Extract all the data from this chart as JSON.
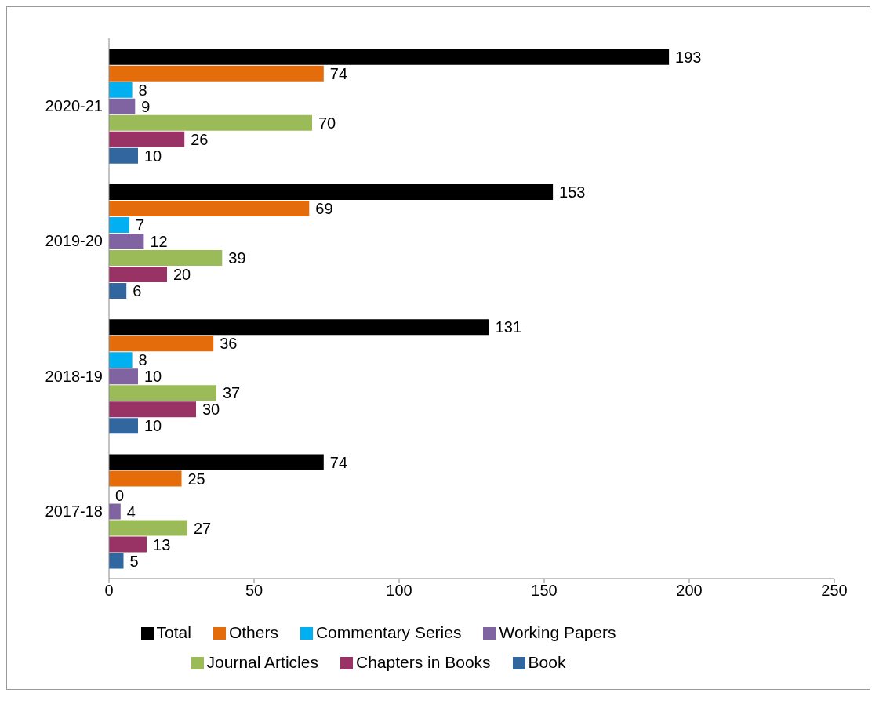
{
  "chart_data": {
    "type": "bar",
    "orientation": "horizontal",
    "categories": [
      "2020-21",
      "2019-20",
      "2018-19",
      "2017-18"
    ],
    "series": [
      {
        "name": "Total",
        "color": "#000000",
        "values": [
          193,
          153,
          131,
          74
        ]
      },
      {
        "name": "Others",
        "color": "#e46c0a",
        "values": [
          74,
          69,
          36,
          25
        ]
      },
      {
        "name": "Commentary Series",
        "color": "#00b0f0",
        "values": [
          8,
          7,
          8,
          0
        ]
      },
      {
        "name": "Working Papers",
        "color": "#8064a2",
        "values": [
          9,
          12,
          10,
          4
        ]
      },
      {
        "name": "Journal Articles",
        "color": "#9bbb59",
        "values": [
          70,
          39,
          37,
          27
        ]
      },
      {
        "name": "Chapters in Books",
        "color": "#993366",
        "values": [
          26,
          20,
          30,
          13
        ]
      },
      {
        "name": "Book",
        "color": "#31669e",
        "values": [
          10,
          6,
          10,
          5
        ]
      }
    ],
    "xlim": [
      0,
      250
    ],
    "xticks": [
      0,
      50,
      100,
      150,
      200,
      250
    ],
    "data_labels": true,
    "grid": false,
    "legend": "bottom"
  }
}
